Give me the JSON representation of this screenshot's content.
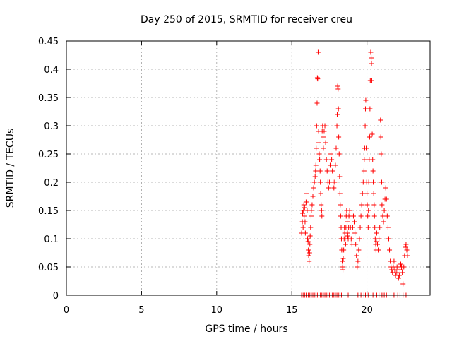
{
  "chart_data": {
    "type": "scatter",
    "title": "Day 250 of 2015, SRMTID for receiver creu",
    "xlabel": "GPS time / hours",
    "ylabel": "SRMTID / TECUs",
    "xlim": [
      0,
      24.2
    ],
    "ylim": [
      0,
      0.45
    ],
    "xticks": [
      0,
      5,
      10,
      15,
      20
    ],
    "xtick_labels": [
      "0",
      "5",
      "10",
      "15",
      "20"
    ],
    "yticks": [
      0,
      0.05,
      0.1,
      0.15,
      0.2,
      0.25,
      0.3,
      0.35,
      0.4,
      0.45
    ],
    "ytick_labels": [
      "0",
      "0.05",
      "0.1",
      "0.15",
      "0.2",
      "0.25",
      "0.3",
      "0.35",
      "0.4",
      "0.45"
    ],
    "grid": true,
    "marker": "+",
    "color": "#ff0000",
    "series": [
      {
        "name": "SRMTID",
        "points": [
          [
            15.65,
            0.11
          ],
          [
            15.7,
            0.13
          ],
          [
            15.72,
            0.145
          ],
          [
            15.75,
            0.12
          ],
          [
            15.78,
            0.15
          ],
          [
            15.8,
            0.16
          ],
          [
            15.82,
            0.14
          ],
          [
            15.85,
            0.155
          ],
          [
            15.88,
            0.13
          ],
          [
            15.9,
            0.11
          ],
          [
            15.95,
            0.165
          ],
          [
            16.0,
            0.18
          ],
          [
            16.02,
            0.15
          ],
          [
            16.05,
            0.1
          ],
          [
            16.08,
            0.095
          ],
          [
            16.1,
            0.08
          ],
          [
            16.12,
            0.07
          ],
          [
            16.15,
            0.06
          ],
          [
            16.18,
            0.075
          ],
          [
            16.2,
            0.09
          ],
          [
            16.22,
            0.105
          ],
          [
            16.25,
            0.12
          ],
          [
            16.28,
            0.14
          ],
          [
            16.3,
            0.15
          ],
          [
            16.35,
            0.16
          ],
          [
            16.4,
            0.175
          ],
          [
            16.45,
            0.19
          ],
          [
            16.5,
            0.2
          ],
          [
            16.55,
            0.21
          ],
          [
            16.58,
            0.22
          ],
          [
            16.6,
            0.23
          ],
          [
            16.62,
            0.26
          ],
          [
            16.65,
            0.3
          ],
          [
            16.68,
            0.34
          ],
          [
            16.7,
            0.385
          ],
          [
            16.72,
            0.383
          ],
          [
            16.75,
            0.43
          ],
          [
            16.78,
            0.29
          ],
          [
            16.8,
            0.27
          ],
          [
            16.82,
            0.25
          ],
          [
            16.85,
            0.24
          ],
          [
            16.88,
            0.22
          ],
          [
            16.9,
            0.2
          ],
          [
            16.92,
            0.18
          ],
          [
            16.95,
            0.16
          ],
          [
            16.98,
            0.15
          ],
          [
            17.0,
            0.14
          ],
          [
            17.02,
            0.29
          ],
          [
            17.05,
            0.3
          ],
          [
            17.08,
            0.28
          ],
          [
            17.1,
            0.26
          ],
          [
            17.15,
            0.29
          ],
          [
            17.2,
            0.3
          ],
          [
            17.25,
            0.27
          ],
          [
            17.3,
            0.24
          ],
          [
            17.35,
            0.22
          ],
          [
            17.4,
            0.2
          ],
          [
            17.45,
            0.19
          ],
          [
            17.5,
            0.2
          ],
          [
            17.55,
            0.23
          ],
          [
            17.6,
            0.25
          ],
          [
            17.65,
            0.24
          ],
          [
            17.7,
            0.22
          ],
          [
            17.75,
            0.2
          ],
          [
            17.8,
            0.19
          ],
          [
            17.85,
            0.2
          ],
          [
            17.9,
            0.23
          ],
          [
            17.95,
            0.26
          ],
          [
            18.0,
            0.3
          ],
          [
            18.02,
            0.32
          ],
          [
            18.05,
            0.37
          ],
          [
            18.08,
            0.365
          ],
          [
            18.1,
            0.33
          ],
          [
            18.12,
            0.28
          ],
          [
            18.15,
            0.25
          ],
          [
            18.18,
            0.21
          ],
          [
            18.2,
            0.18
          ],
          [
            18.22,
            0.16
          ],
          [
            18.25,
            0.14
          ],
          [
            18.28,
            0.12
          ],
          [
            18.3,
            0.1
          ],
          [
            18.32,
            0.08
          ],
          [
            18.35,
            0.06
          ],
          [
            18.38,
            0.05
          ],
          [
            18.4,
            0.045
          ],
          [
            18.42,
            0.065
          ],
          [
            18.45,
            0.08
          ],
          [
            18.48,
            0.1
          ],
          [
            18.5,
            0.12
          ],
          [
            18.52,
            0.11
          ],
          [
            18.55,
            0.1
          ],
          [
            18.58,
            0.09
          ],
          [
            18.6,
            0.12
          ],
          [
            18.62,
            0.14
          ],
          [
            18.65,
            0.15
          ],
          [
            18.68,
            0.13
          ],
          [
            18.7,
            0.11
          ],
          [
            18.72,
            0.105
          ],
          [
            18.75,
            0.1
          ],
          [
            18.78,
            0.12
          ],
          [
            18.8,
            0.14
          ],
          [
            18.85,
            0.15
          ],
          [
            18.9,
            0.12
          ],
          [
            18.95,
            0.1
          ],
          [
            19.0,
            0.09
          ],
          [
            19.05,
            0.12
          ],
          [
            19.1,
            0.14
          ],
          [
            19.15,
            0.13
          ],
          [
            19.2,
            0.11
          ],
          [
            19.25,
            0.09
          ],
          [
            19.3,
            0.07
          ],
          [
            19.35,
            0.05
          ],
          [
            19.4,
            0.06
          ],
          [
            19.45,
            0.08
          ],
          [
            19.5,
            0.1
          ],
          [
            19.55,
            0.12
          ],
          [
            19.6,
            0.14
          ],
          [
            19.65,
            0.16
          ],
          [
            19.7,
            0.18
          ],
          [
            19.75,
            0.2
          ],
          [
            19.8,
            0.22
          ],
          [
            19.82,
            0.24
          ],
          [
            19.85,
            0.26
          ],
          [
            19.88,
            0.3
          ],
          [
            19.9,
            0.33
          ],
          [
            19.92,
            0.345
          ],
          [
            19.95,
            0.26
          ],
          [
            19.98,
            0.2
          ],
          [
            20.0,
            0.18
          ],
          [
            20.02,
            0.16
          ],
          [
            20.05,
            0.14
          ],
          [
            20.08,
            0.12
          ],
          [
            20.1,
            0.15
          ],
          [
            20.12,
            0.2
          ],
          [
            20.15,
            0.24
          ],
          [
            20.18,
            0.28
          ],
          [
            20.2,
            0.33
          ],
          [
            20.22,
            0.38
          ],
          [
            20.25,
            0.43
          ],
          [
            20.28,
            0.42
          ],
          [
            20.3,
            0.41
          ],
          [
            20.32,
            0.38
          ],
          [
            20.35,
            0.285
          ],
          [
            20.38,
            0.24
          ],
          [
            20.4,
            0.22
          ],
          [
            20.42,
            0.2
          ],
          [
            20.45,
            0.18
          ],
          [
            20.48,
            0.16
          ],
          [
            20.5,
            0.14
          ],
          [
            20.52,
            0.12
          ],
          [
            20.55,
            0.1
          ],
          [
            20.58,
            0.09
          ],
          [
            20.6,
            0.08
          ],
          [
            20.62,
            0.095
          ],
          [
            20.65,
            0.11
          ],
          [
            20.7,
            0.09
          ],
          [
            20.75,
            0.08
          ],
          [
            20.8,
            0.1
          ],
          [
            20.85,
            0.12
          ],
          [
            20.9,
            0.31
          ],
          [
            20.92,
            0.28
          ],
          [
            20.95,
            0.25
          ],
          [
            20.98,
            0.2
          ],
          [
            21.0,
            0.16
          ],
          [
            21.05,
            0.14
          ],
          [
            21.1,
            0.13
          ],
          [
            21.15,
            0.15
          ],
          [
            21.2,
            0.17
          ],
          [
            21.25,
            0.19
          ],
          [
            21.3,
            0.17
          ],
          [
            21.35,
            0.14
          ],
          [
            21.4,
            0.12
          ],
          [
            21.45,
            0.1
          ],
          [
            21.5,
            0.08
          ],
          [
            21.55,
            0.06
          ],
          [
            21.6,
            0.05
          ],
          [
            21.65,
            0.045
          ],
          [
            21.7,
            0.04
          ],
          [
            21.75,
            0.05
          ],
          [
            21.8,
            0.06
          ],
          [
            21.85,
            0.045
          ],
          [
            21.9,
            0.035
          ],
          [
            21.95,
            0.04
          ],
          [
            22.0,
            0.05
          ],
          [
            22.05,
            0.04
          ],
          [
            22.1,
            0.03
          ],
          [
            22.15,
            0.035
          ],
          [
            22.2,
            0.045
          ],
          [
            22.25,
            0.055
          ],
          [
            22.3,
            0.05
          ],
          [
            22.35,
            0.04
          ],
          [
            22.4,
            0.02
          ],
          [
            22.45,
            0.05
          ],
          [
            22.5,
            0.07
          ],
          [
            22.55,
            0.085
          ],
          [
            22.6,
            0.09
          ],
          [
            22.65,
            0.08
          ],
          [
            22.7,
            0.07
          ],
          [
            15.65,
            0.0
          ],
          [
            15.75,
            0.0
          ],
          [
            15.85,
            0.0
          ],
          [
            15.95,
            0.0
          ],
          [
            16.1,
            0.0
          ],
          [
            16.2,
            0.0
          ],
          [
            16.3,
            0.0
          ],
          [
            16.4,
            0.0
          ],
          [
            16.5,
            0.0
          ],
          [
            16.6,
            0.0
          ],
          [
            16.7,
            0.0
          ],
          [
            16.8,
            0.0
          ],
          [
            16.9,
            0.0
          ],
          [
            17.0,
            0.0
          ],
          [
            17.1,
            0.0
          ],
          [
            17.2,
            0.0
          ],
          [
            17.3,
            0.0
          ],
          [
            17.4,
            0.0
          ],
          [
            17.5,
            0.0
          ],
          [
            17.6,
            0.0
          ],
          [
            17.7,
            0.0
          ],
          [
            17.8,
            0.0
          ],
          [
            17.9,
            0.0
          ],
          [
            18.0,
            0.0
          ],
          [
            18.1,
            0.0
          ],
          [
            18.2,
            0.0
          ],
          [
            18.3,
            0.0
          ],
          [
            18.75,
            0.0
          ],
          [
            19.4,
            0.0
          ],
          [
            19.6,
            0.0
          ],
          [
            19.8,
            0.0
          ],
          [
            19.9,
            0.0
          ],
          [
            20.0,
            0.0
          ],
          [
            20.1,
            0.0
          ],
          [
            20.4,
            0.0
          ],
          [
            20.65,
            0.0
          ],
          [
            20.8,
            0.0
          ],
          [
            21.0,
            0.0
          ],
          [
            21.15,
            0.0
          ],
          [
            21.3,
            0.0
          ],
          [
            21.8,
            0.0
          ],
          [
            22.05,
            0.0
          ],
          [
            22.2,
            0.0
          ],
          [
            22.4,
            0.0
          ],
          [
            22.6,
            0.0
          ]
        ]
      }
    ]
  }
}
